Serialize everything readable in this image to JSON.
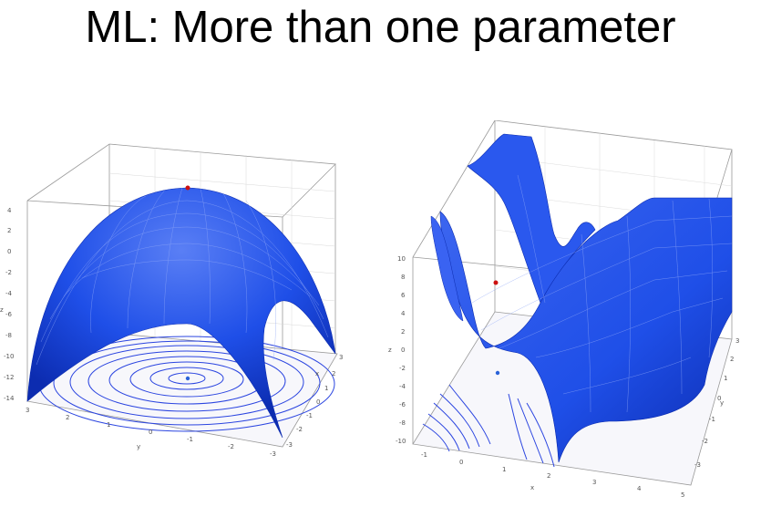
{
  "slide": {
    "title": "ML: More than one parameter"
  },
  "colors": {
    "surface": "#1f4fe8",
    "surface_dark": "#0d2fb8",
    "contour": "#2b45e0",
    "max_point": "#cc1010",
    "min_point": "#2a62d8",
    "box": "#999999"
  },
  "left_plot": {
    "z_axis_label": "z",
    "y_axis_label": "y",
    "x_axis_label": "x",
    "z_ticks": [
      "4",
      "2",
      "0",
      "-2",
      "-4",
      "-6",
      "-8",
      "-10",
      "-12",
      "-14"
    ],
    "y_ticks": [
      "3",
      "2",
      "1",
      "0",
      "-1",
      "-2",
      "-3"
    ],
    "x_ticks": [
      "3",
      "2",
      "1",
      "0",
      "-1",
      "-2",
      "-3"
    ]
  },
  "right_plot": {
    "z_axis_label": "z",
    "y_axis_label": "y",
    "x_axis_label": "x",
    "z_ticks": [
      "10",
      "8",
      "6",
      "4",
      "2",
      "0",
      "-2",
      "-4",
      "-6",
      "-8",
      "-10"
    ],
    "x_ticks": [
      "-1",
      "0",
      "1",
      "2",
      "3",
      "4",
      "5"
    ],
    "y_ticks": [
      "3",
      "2",
      "1",
      "0",
      "-1",
      "-2",
      "-3"
    ]
  }
}
